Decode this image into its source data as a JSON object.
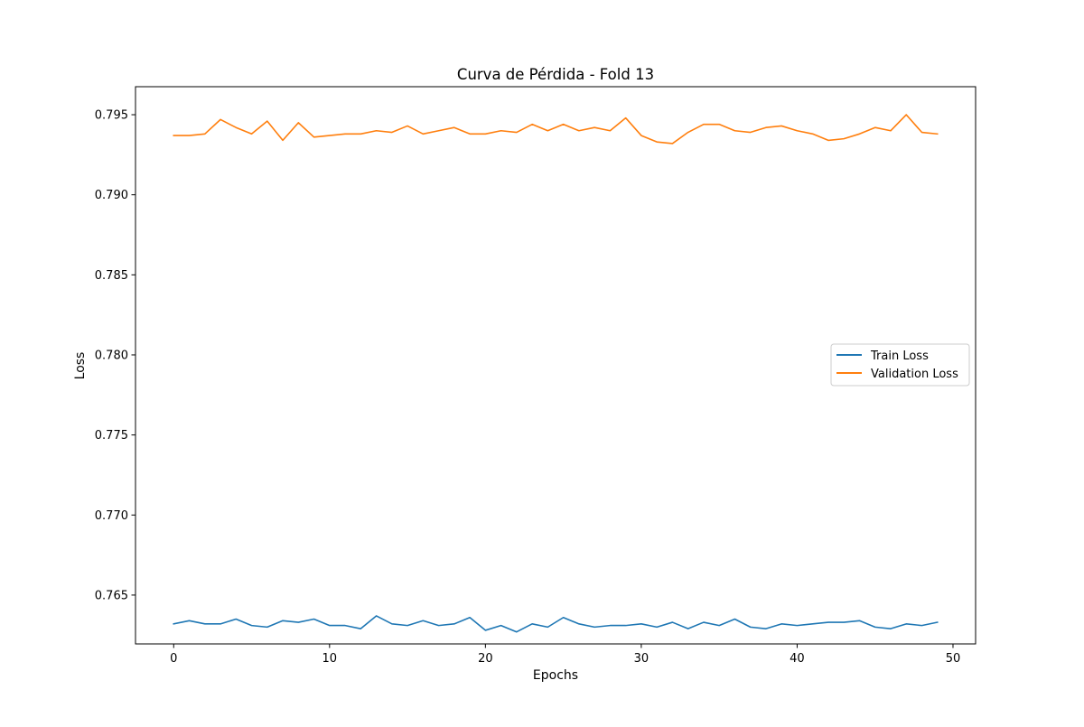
{
  "chart_data": {
    "type": "line",
    "title": "Curva de Pérdida - Fold 13",
    "xlabel": "Epochs",
    "ylabel": "Loss",
    "xlim": [
      -2.45,
      51.45
    ],
    "ylim": [
      0.76195,
      0.79675
    ],
    "grid": false,
    "legend_position": "center-right",
    "x_ticks": [
      0,
      10,
      20,
      30,
      40,
      50
    ],
    "x_tick_labels": [
      "0",
      "10",
      "20",
      "30",
      "40",
      "50"
    ],
    "y_ticks": [
      0.765,
      0.77,
      0.775,
      0.78,
      0.785,
      0.79,
      0.795
    ],
    "y_tick_labels": [
      "0.765",
      "0.770",
      "0.775",
      "0.780",
      "0.785",
      "0.790",
      "0.795"
    ],
    "x": [
      0,
      1,
      2,
      3,
      4,
      5,
      6,
      7,
      8,
      9,
      10,
      11,
      12,
      13,
      14,
      15,
      16,
      17,
      18,
      19,
      20,
      21,
      22,
      23,
      24,
      25,
      26,
      27,
      28,
      29,
      30,
      31,
      32,
      33,
      34,
      35,
      36,
      37,
      38,
      39,
      40,
      41,
      42,
      43,
      44,
      45,
      46,
      47,
      48,
      49
    ],
    "series": [
      {
        "name": "Train Loss",
        "color": "#1f77b4",
        "values": [
          0.7632,
          0.7634,
          0.7632,
          0.7632,
          0.7635,
          0.7631,
          0.763,
          0.7634,
          0.7633,
          0.7635,
          0.7631,
          0.7631,
          0.7629,
          0.7637,
          0.7632,
          0.7631,
          0.7634,
          0.7631,
          0.7632,
          0.7636,
          0.7628,
          0.7631,
          0.7627,
          0.7632,
          0.763,
          0.7636,
          0.7632,
          0.763,
          0.7631,
          0.7631,
          0.7632,
          0.763,
          0.7633,
          0.7629,
          0.7633,
          0.7631,
          0.7635,
          0.763,
          0.7629,
          0.7632,
          0.7631,
          0.7632,
          0.7633,
          0.7633,
          0.7634,
          0.763,
          0.7629,
          0.7632,
          0.7631,
          0.7633
        ]
      },
      {
        "name": "Validation Loss",
        "color": "#ff7f0e",
        "values": [
          0.7937,
          0.7937,
          0.7938,
          0.7947,
          0.7942,
          0.7938,
          0.7946,
          0.7934,
          0.7945,
          0.7936,
          0.7937,
          0.7938,
          0.7938,
          0.794,
          0.7939,
          0.7943,
          0.7938,
          0.794,
          0.7942,
          0.7938,
          0.7938,
          0.794,
          0.7939,
          0.7944,
          0.794,
          0.7944,
          0.794,
          0.7942,
          0.794,
          0.7948,
          0.7937,
          0.7933,
          0.7932,
          0.7939,
          0.7944,
          0.7944,
          0.794,
          0.7939,
          0.7942,
          0.7943,
          0.794,
          0.7938,
          0.7934,
          0.7935,
          0.7938,
          0.7942,
          0.794,
          0.795,
          0.7939,
          0.7938
        ]
      }
    ]
  }
}
